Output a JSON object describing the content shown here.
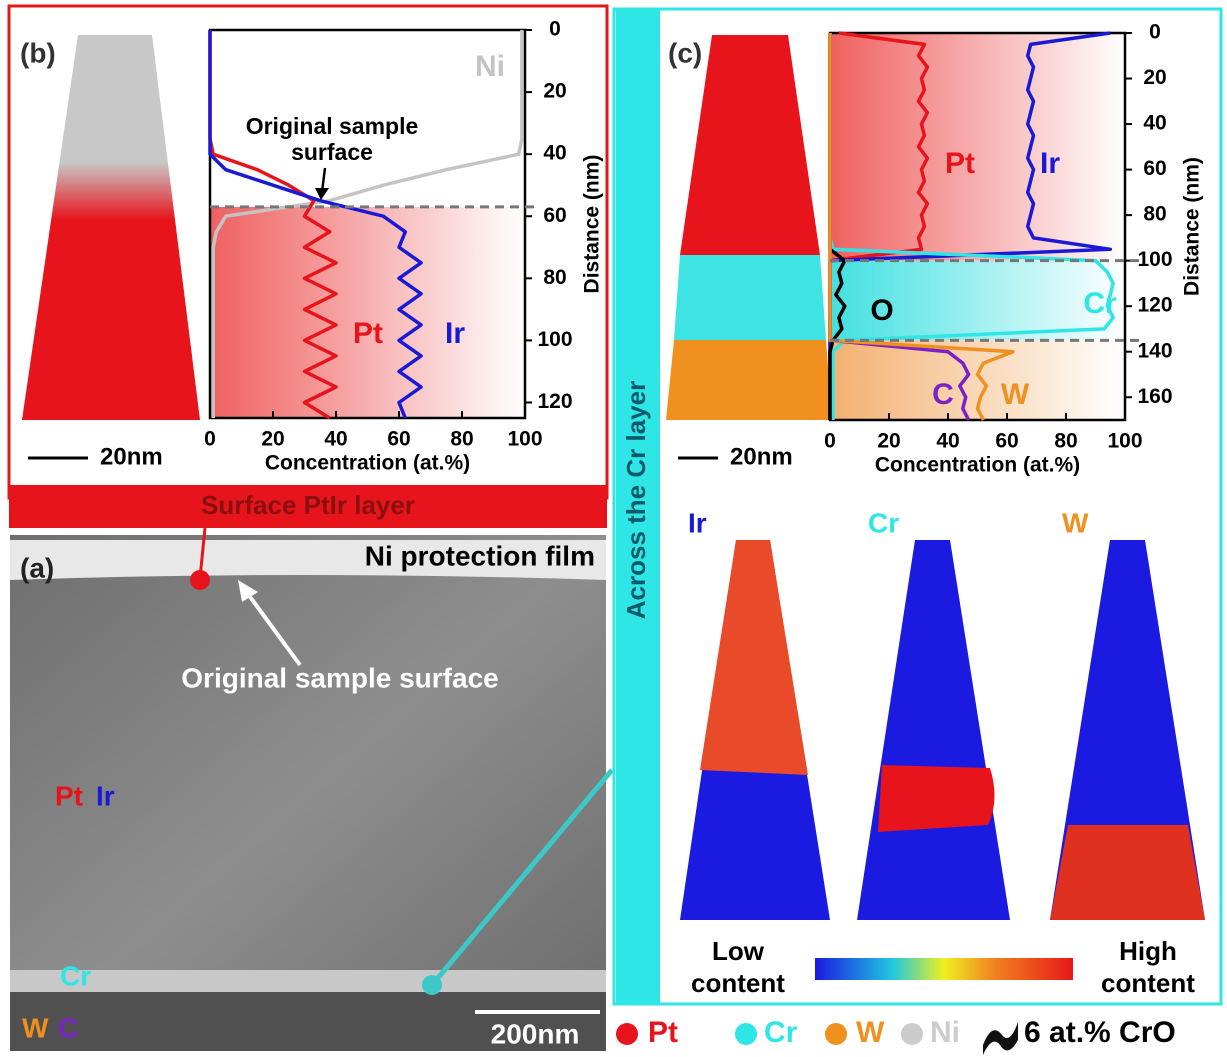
{
  "panel_a": {
    "label": "(a)",
    "protection_label": "Ni protection film",
    "surface_label": "Original sample surface",
    "ptir_pt": "Pt",
    "ptir_ir": "Ir",
    "cr_label": "Cr",
    "wc_w": "W",
    "wc_c": "C",
    "scale_bar": "200nm"
  },
  "panel_b": {
    "label": "(b)",
    "scale_bar": "20nm",
    "banner": "Surface PtIr layer"
  },
  "panel_c": {
    "label": "(c)",
    "scale_bar": "20nm",
    "banner": "Across the Cr layer",
    "maps": [
      "Ir",
      "Cr",
      "W"
    ],
    "colorbar_low": [
      "Low",
      "content"
    ],
    "colorbar_high": [
      "High",
      "content"
    ]
  },
  "legend": {
    "items": [
      {
        "name": "Pt",
        "color": "#e8141c"
      },
      {
        "name": "Cr",
        "color": "#2ee6e6"
      },
      {
        "name": "W",
        "color": "#f0901e"
      },
      {
        "name": "Ni",
        "color": "#cccccc"
      }
    ],
    "iso_label": "6 at.% CrO"
  },
  "chart_data": [
    {
      "type": "line",
      "xlabel": "Concentration (at.%)",
      "ylabel": "Distance (nm)",
      "xlim": [
        0,
        100
      ],
      "xticks": [
        0,
        20,
        40,
        60,
        80,
        100
      ],
      "ylim": [
        0,
        125
      ],
      "yticks": [
        0,
        20,
        40,
        60,
        80,
        100,
        120
      ],
      "y_inverted": true,
      "distance": [
        0,
        5,
        10,
        15,
        20,
        25,
        30,
        35,
        40,
        45,
        50,
        55,
        60,
        65,
        70,
        75,
        80,
        85,
        90,
        95,
        100,
        105,
        110,
        115,
        120,
        125
      ],
      "series": [
        {
          "name": "Ni",
          "color": "#c4c4c4",
          "values": [
            99,
            99,
            99,
            99,
            99,
            99,
            99,
            99,
            98,
            75,
            55,
            38,
            5,
            2,
            1,
            1,
            1,
            1,
            1,
            1,
            1,
            1,
            1,
            1,
            1,
            1
          ]
        },
        {
          "name": "Pt",
          "color": "#e8141c",
          "values": [
            0,
            0,
            0,
            0,
            0,
            0,
            0,
            0,
            1,
            15,
            25,
            33,
            30,
            38,
            30,
            40,
            30,
            40,
            30,
            40,
            30,
            40,
            30,
            40,
            30,
            38
          ]
        },
        {
          "name": "Ir",
          "color": "#1a1ad6",
          "values": [
            0,
            0,
            0,
            0,
            0,
            0,
            0,
            0,
            0,
            5,
            20,
            35,
            55,
            62,
            60,
            67,
            60,
            67,
            60,
            67,
            60,
            67,
            60,
            67,
            60,
            62
          ]
        }
      ],
      "interfaces": [
        57
      ],
      "annotation": [
        "Original sample",
        "surface"
      ]
    },
    {
      "type": "line",
      "xlabel": "Concentration (at.%)",
      "ylabel": "Distance (nm)",
      "xlim": [
        0,
        100
      ],
      "xticks": [
        0,
        20,
        40,
        60,
        80,
        100
      ],
      "ylim": [
        0,
        170
      ],
      "yticks": [
        0,
        20,
        40,
        60,
        80,
        100,
        120,
        140,
        160
      ],
      "y_inverted": true,
      "distance": [
        0,
        5,
        10,
        15,
        20,
        25,
        30,
        35,
        40,
        45,
        50,
        55,
        60,
        65,
        70,
        75,
        80,
        85,
        90,
        95,
        100,
        105,
        110,
        115,
        120,
        125,
        130,
        135,
        140,
        145,
        150,
        155,
        160,
        165,
        170
      ],
      "series": [
        {
          "name": "Pt",
          "color": "#e8141c",
          "values": [
            3,
            32,
            30,
            33,
            31,
            32,
            30,
            33,
            31,
            32,
            30,
            33,
            31,
            32,
            30,
            33,
            31,
            32,
            30,
            31,
            0,
            0,
            0,
            0,
            0,
            0,
            0,
            0,
            0,
            0,
            0,
            0,
            0,
            0,
            0
          ]
        },
        {
          "name": "Ir",
          "color": "#1a1ad6",
          "values": [
            95,
            68,
            67,
            69,
            68,
            67,
            69,
            68,
            67,
            69,
            68,
            67,
            69,
            68,
            67,
            69,
            68,
            67,
            69,
            95,
            0,
            0,
            0,
            0,
            0,
            0,
            0,
            0,
            0,
            0,
            0,
            0,
            0,
            0,
            0
          ]
        },
        {
          "name": "Cr",
          "color": "#2ee6e6",
          "values": [
            0,
            0,
            0,
            0,
            0,
            0,
            0,
            0,
            0,
            0,
            0,
            0,
            0,
            0,
            0,
            0,
            0,
            0,
            0,
            1,
            90,
            94,
            96,
            95,
            94,
            96,
            93,
            5,
            1,
            1,
            1,
            1,
            1,
            1,
            1
          ]
        },
        {
          "name": "O",
          "color": "#000000",
          "values": [
            0,
            0,
            0,
            0,
            0,
            0,
            0,
            0,
            0,
            0,
            0,
            0,
            0,
            0,
            0,
            0,
            0,
            0,
            0,
            0,
            5,
            3,
            4,
            2,
            5,
            3,
            4,
            1,
            0,
            0,
            0,
            0,
            0,
            0,
            0
          ]
        },
        {
          "name": "C",
          "color": "#7a22c8",
          "values": [
            0,
            0,
            0,
            0,
            0,
            0,
            0,
            0,
            0,
            0,
            0,
            0,
            0,
            0,
            0,
            0,
            0,
            0,
            0,
            0,
            0,
            0,
            0,
            0,
            0,
            0,
            0,
            0,
            40,
            45,
            47,
            44,
            46,
            45,
            47
          ]
        },
        {
          "name": "W",
          "color": "#f0901e",
          "values": [
            0,
            0,
            0,
            0,
            0,
            0,
            0,
            0,
            0,
            0,
            0,
            0,
            0,
            0,
            0,
            0,
            0,
            0,
            0,
            0,
            0,
            0,
            0,
            0,
            0,
            0,
            0,
            0,
            62,
            52,
            50,
            53,
            51,
            50,
            52
          ]
        }
      ],
      "interfaces": [
        100,
        135
      ]
    }
  ]
}
